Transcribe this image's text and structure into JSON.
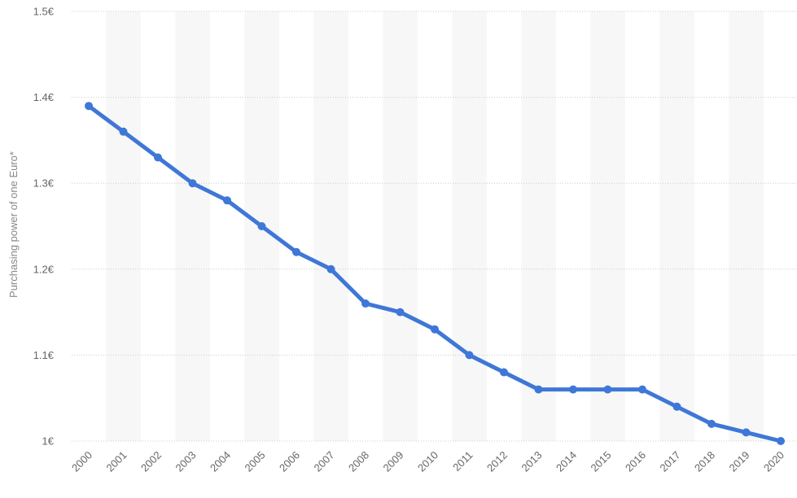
{
  "chart_data": {
    "type": "line",
    "title": "",
    "xlabel": "",
    "ylabel": "Purchasing power of one Euro*",
    "ylim": [
      1.0,
      1.5
    ],
    "y_ticks": [
      1.0,
      1.1,
      1.2,
      1.3,
      1.4,
      1.5
    ],
    "y_tick_labels": [
      "1€",
      "1.1€",
      "1.2€",
      "1.3€",
      "1.4€",
      "1.5€"
    ],
    "grid": true,
    "grid_style": "dotted",
    "alternating_column_bands": true,
    "categories": [
      "2000",
      "2001",
      "2002",
      "2003",
      "2004",
      "2005",
      "2006",
      "2007",
      "2008",
      "2009",
      "2010",
      "2011",
      "2012",
      "2013",
      "2014",
      "2015",
      "2016",
      "2017",
      "2018",
      "2019",
      "2020"
    ],
    "series": [
      {
        "values": [
          1.39,
          1.36,
          1.33,
          1.3,
          1.28,
          1.25,
          1.22,
          1.2,
          1.16,
          1.15,
          1.13,
          1.1,
          1.08,
          1.06,
          1.06,
          1.06,
          1.06,
          1.04,
          1.02,
          1.01,
          1.0
        ],
        "color": "#3f77d7"
      }
    ]
  },
  "colors": {
    "line": "#3f77d7",
    "band": "#f7f7f7",
    "grid": "#cccccc",
    "axis_text": "#666666"
  }
}
